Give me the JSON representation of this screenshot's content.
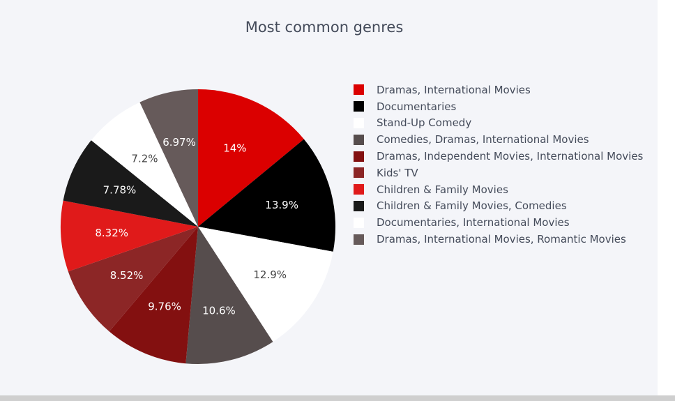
{
  "chart_data": {
    "type": "pie",
    "title": "Most common genres",
    "slices": [
      {
        "label": "Dramas, International Movies",
        "value": 14,
        "display": "14%",
        "color": "#db0000",
        "text_color": "#ffffff"
      },
      {
        "label": "Documentaries",
        "value": 13.9,
        "display": "13.9%",
        "color": "#000000",
        "text_color": "#ffffff"
      },
      {
        "label": "Stand-Up Comedy",
        "value": 12.9,
        "display": "12.9%",
        "color": "#ffffff",
        "text_color": "#444444"
      },
      {
        "label": "Comedies, Dramas, International Movies",
        "value": 10.6,
        "display": "10.6%",
        "color": "#564d4d",
        "text_color": "#ffffff"
      },
      {
        "label": "Dramas, Independent Movies, International Movies",
        "value": 9.76,
        "display": "9.76%",
        "color": "#831010",
        "text_color": "#ffffff"
      },
      {
        "label": "Kids' TV",
        "value": 8.52,
        "display": "8.52%",
        "color": "#8c2626",
        "text_color": "#ffffff"
      },
      {
        "label": "Children & Family Movies",
        "value": 8.32,
        "display": "8.32%",
        "color": "#e01a1a",
        "text_color": "#ffffff"
      },
      {
        "label": "Children & Family Movies, Comedies",
        "value": 7.78,
        "display": "7.78%",
        "color": "#1a1a1a",
        "text_color": "#ffffff"
      },
      {
        "label": "Documentaries, International Movies",
        "value": 7.2,
        "display": "7.2%",
        "color": "#ffffff",
        "text_color": "#444444"
      },
      {
        "label": "Dramas, International Movies, Romantic Movies",
        "value": 6.97,
        "display": "6.97%",
        "color": "#665a5a",
        "text_color": "#ffffff"
      }
    ],
    "direction": "clockwise",
    "start": "top",
    "legend_position": "right",
    "legend_order": [
      "Dramas, International Movies",
      "Documentaries",
      "Stand-Up Comedy",
      "Comedies, Dramas, International Movies",
      "Dramas, Independent Movies, International Movies",
      "Kids' TV",
      "Children & Family Movies",
      "Children & Family Movies, Comedies",
      "Documentaries, International Movies",
      "Dramas, International Movies, Romantic Movies"
    ]
  }
}
